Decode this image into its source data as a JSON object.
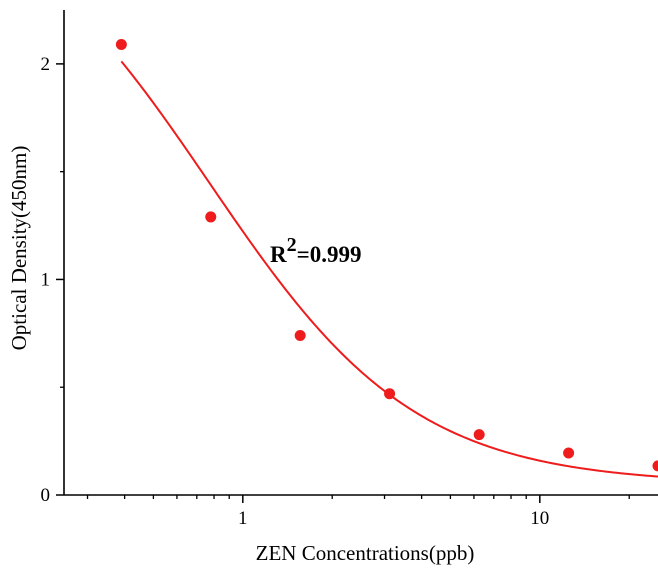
{
  "chart_data": {
    "type": "scatter",
    "xlabel": "ZEN Concentrations(ppb)",
    "ylabel": "Optical Density(450nm)",
    "x_scale": "log",
    "xlim": [
      0.25,
      25
    ],
    "ylim": [
      0,
      2.25
    ],
    "x_ticks": [
      {
        "value": 1,
        "label": "1"
      },
      {
        "value": 10,
        "label": "10"
      }
    ],
    "y_ticks": [
      {
        "value": 0,
        "label": "0"
      },
      {
        "value": 1,
        "label": "1"
      },
      {
        "value": 2,
        "label": "2"
      }
    ],
    "y_minor_ticks": [
      0.5,
      1.5
    ],
    "x_minor_ticks": [
      0.3,
      0.4,
      0.5,
      0.6,
      0.7,
      0.8,
      0.9,
      2,
      3,
      4,
      5,
      6,
      7,
      8,
      9,
      20
    ],
    "points": [
      {
        "x": 0.39,
        "y": 2.09
      },
      {
        "x": 0.78,
        "y": 1.29
      },
      {
        "x": 1.56,
        "y": 0.74
      },
      {
        "x": 3.12,
        "y": 0.47
      },
      {
        "x": 6.25,
        "y": 0.28
      },
      {
        "x": 12.5,
        "y": 0.195
      },
      {
        "x": 25,
        "y": 0.135
      }
    ],
    "fit": {
      "type": "4PL",
      "A": 2.85,
      "D": 0.05,
      "C": 0.77,
      "B": 1.25
    },
    "annotation": {
      "base": "R",
      "superscript": "2",
      "rest": "=0.999"
    },
    "colors": {
      "series": "#ee1c1c",
      "axis": "#000000"
    },
    "grid": false
  }
}
